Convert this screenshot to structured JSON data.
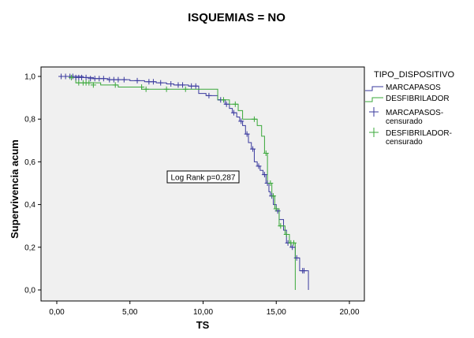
{
  "chart_data": {
    "type": "line",
    "title": "ISQUEMIAS = NO",
    "xlabel": "TS",
    "ylabel": "Supervivencia acum",
    "xlim": [
      0,
      20
    ],
    "ylim": [
      0,
      1
    ],
    "x_ticks": [
      "0,00",
      "5,00",
      "10,00",
      "15,00",
      "20,00"
    ],
    "y_ticks": [
      "0,0",
      "0,2",
      "0,4",
      "0,6",
      "0,8",
      "1,0"
    ],
    "grid": false,
    "legend_position": "right",
    "legend_title": "TIPO_DISPOSITIVO",
    "legend": [
      {
        "label": "MARCAPASOS",
        "kind": "line",
        "color": "#3a3a9e"
      },
      {
        "label": "DESFIBRILADOR",
        "kind": "line",
        "color": "#3aa83a"
      },
      {
        "label": "MARCAPASOS-\ncensurado",
        "kind": "cross",
        "color": "#3a3a9e"
      },
      {
        "label": "DESFIBRILADOR-\ncensurado",
        "kind": "cross",
        "color": "#3aa83a"
      }
    ],
    "annotation": "Log Rank p=0,287",
    "series": [
      {
        "name": "MARCAPASOS",
        "color": "#3a3a9e",
        "steps": [
          [
            0.2,
            1.0
          ],
          [
            1.8,
            0.995
          ],
          [
            2.5,
            0.99
          ],
          [
            3.5,
            0.985
          ],
          [
            5.0,
            0.98
          ],
          [
            6.0,
            0.975
          ],
          [
            6.8,
            0.97
          ],
          [
            7.5,
            0.965
          ],
          [
            8.0,
            0.96
          ],
          [
            9.0,
            0.955
          ],
          [
            9.7,
            0.92
          ],
          [
            10.2,
            0.91
          ],
          [
            11.0,
            0.89
          ],
          [
            11.5,
            0.87
          ],
          [
            11.8,
            0.85
          ],
          [
            12.0,
            0.83
          ],
          [
            12.3,
            0.81
          ],
          [
            12.5,
            0.79
          ],
          [
            12.7,
            0.77
          ],
          [
            12.9,
            0.73
          ],
          [
            13.1,
            0.69
          ],
          [
            13.3,
            0.66
          ],
          [
            13.5,
            0.6
          ],
          [
            13.7,
            0.58
          ],
          [
            13.9,
            0.56
          ],
          [
            14.1,
            0.54
          ],
          [
            14.3,
            0.5
          ],
          [
            14.5,
            0.46
          ],
          [
            14.6,
            0.44
          ],
          [
            14.8,
            0.4
          ],
          [
            15.0,
            0.37
          ],
          [
            15.2,
            0.33
          ],
          [
            15.5,
            0.28
          ],
          [
            15.7,
            0.22
          ],
          [
            16.0,
            0.2
          ],
          [
            16.3,
            0.15
          ],
          [
            16.6,
            0.09
          ],
          [
            17.2,
            0.0
          ]
        ],
        "censored": [
          [
            0.3,
            1.0
          ],
          [
            0.6,
            1.0
          ],
          [
            0.9,
            1.0
          ],
          [
            1.1,
            1.0
          ],
          [
            1.3,
            0.995
          ],
          [
            1.5,
            0.995
          ],
          [
            1.7,
            0.995
          ],
          [
            2.0,
            0.995
          ],
          [
            2.3,
            0.99
          ],
          [
            2.6,
            0.99
          ],
          [
            2.9,
            0.99
          ],
          [
            3.2,
            0.99
          ],
          [
            3.6,
            0.985
          ],
          [
            3.9,
            0.985
          ],
          [
            4.2,
            0.985
          ],
          [
            4.6,
            0.985
          ],
          [
            5.5,
            0.98
          ],
          [
            6.3,
            0.975
          ],
          [
            6.6,
            0.975
          ],
          [
            7.1,
            0.97
          ],
          [
            7.8,
            0.965
          ],
          [
            8.3,
            0.96
          ],
          [
            8.6,
            0.96
          ],
          [
            9.2,
            0.955
          ],
          [
            9.5,
            0.955
          ],
          [
            10.4,
            0.91
          ],
          [
            11.2,
            0.89
          ],
          [
            11.6,
            0.87
          ],
          [
            12.1,
            0.83
          ],
          [
            12.6,
            0.79
          ],
          [
            13.0,
            0.73
          ],
          [
            13.4,
            0.66
          ],
          [
            13.8,
            0.58
          ],
          [
            14.2,
            0.54
          ],
          [
            14.4,
            0.5
          ],
          [
            14.7,
            0.44
          ],
          [
            15.1,
            0.37
          ],
          [
            15.8,
            0.22
          ],
          [
            16.1,
            0.2
          ],
          [
            16.4,
            0.15
          ],
          [
            16.8,
            0.09
          ],
          [
            16.9,
            0.09
          ]
        ]
      },
      {
        "name": "DESFIBRILADOR",
        "color": "#3aa83a",
        "steps": [
          [
            0.2,
            1.0
          ],
          [
            1.3,
            0.97
          ],
          [
            3.0,
            0.96
          ],
          [
            4.2,
            0.95
          ],
          [
            5.8,
            0.94
          ],
          [
            11.0,
            0.89
          ],
          [
            11.8,
            0.87
          ],
          [
            12.4,
            0.84
          ],
          [
            12.7,
            0.8
          ],
          [
            13.7,
            0.77
          ],
          [
            14.0,
            0.72
          ],
          [
            14.2,
            0.64
          ],
          [
            14.4,
            0.5
          ],
          [
            14.7,
            0.44
          ],
          [
            14.9,
            0.38
          ],
          [
            15.2,
            0.3
          ],
          [
            15.6,
            0.26
          ],
          [
            15.9,
            0.22
          ],
          [
            16.3,
            0.0
          ]
        ],
        "censored": [
          [
            1.0,
            0.995
          ],
          [
            1.5,
            0.97
          ],
          [
            1.8,
            0.97
          ],
          [
            2.0,
            0.97
          ],
          [
            2.2,
            0.97
          ],
          [
            2.5,
            0.96
          ],
          [
            4.0,
            0.96
          ],
          [
            5.8,
            0.95
          ],
          [
            6.1,
            0.94
          ],
          [
            7.5,
            0.94
          ],
          [
            8.8,
            0.94
          ],
          [
            11.4,
            0.89
          ],
          [
            12.2,
            0.87
          ],
          [
            13.5,
            0.8
          ],
          [
            14.3,
            0.64
          ],
          [
            14.6,
            0.5
          ],
          [
            14.8,
            0.44
          ],
          [
            15.0,
            0.38
          ],
          [
            15.3,
            0.3
          ],
          [
            15.7,
            0.26
          ],
          [
            16.0,
            0.22
          ],
          [
            16.2,
            0.22
          ]
        ]
      }
    ]
  }
}
